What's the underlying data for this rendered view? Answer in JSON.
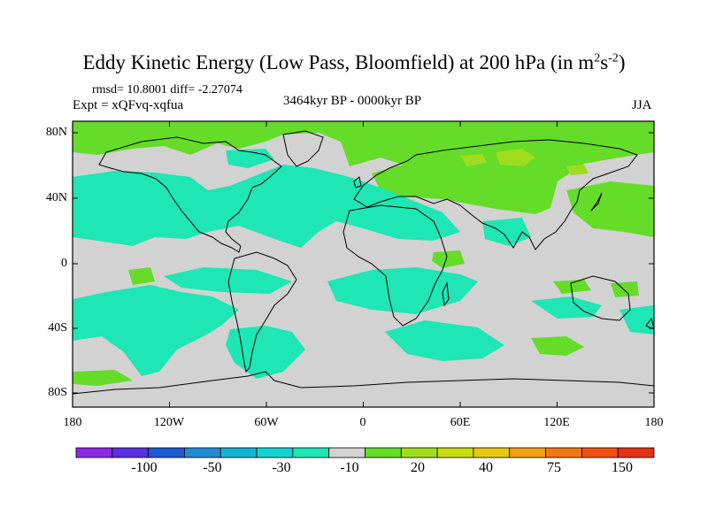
{
  "title": {
    "main": "Eddy Kinetic Energy (Low Pass, Bloomfield) at 200 hPa (in m",
    "sup1": "2",
    "mid": "s",
    "sup2": "-2",
    "end": ")"
  },
  "stats": {
    "rmsd": "rmsd= 10.8001 diff= -2.27074",
    "expt": "Expt = xQFvq-xqfua"
  },
  "period": "3464kyr BP - 0000kyr BP",
  "season": "JJA",
  "lat_labels": [
    "80N",
    "40N",
    "0",
    "40S",
    "80S"
  ],
  "lon_labels": [
    "180",
    "120W",
    "60W",
    "0",
    "60E",
    "120E",
    "180"
  ],
  "colorbar": {
    "colors": [
      "#8a2be2",
      "#5a32e0",
      "#1e5ad2",
      "#1e8cd2",
      "#14b4d2",
      "#14d2d2",
      "#1ee6b4",
      "#d2d2d2",
      "#64dc28",
      "#a0dc1e",
      "#c8dc14",
      "#e6c814",
      "#f0a014",
      "#f07814",
      "#f05014",
      "#e63214"
    ],
    "labels": [
      "-100",
      "-50",
      "-30",
      "-10",
      "20",
      "40",
      "75",
      "150"
    ]
  },
  "palette": {
    "background": "#d2d2d2",
    "green": "#64dc28",
    "yellowgreen": "#a0dc1e",
    "cyan": "#1ee6b4",
    "teal": "#14d2d2",
    "coast": "#000000"
  }
}
